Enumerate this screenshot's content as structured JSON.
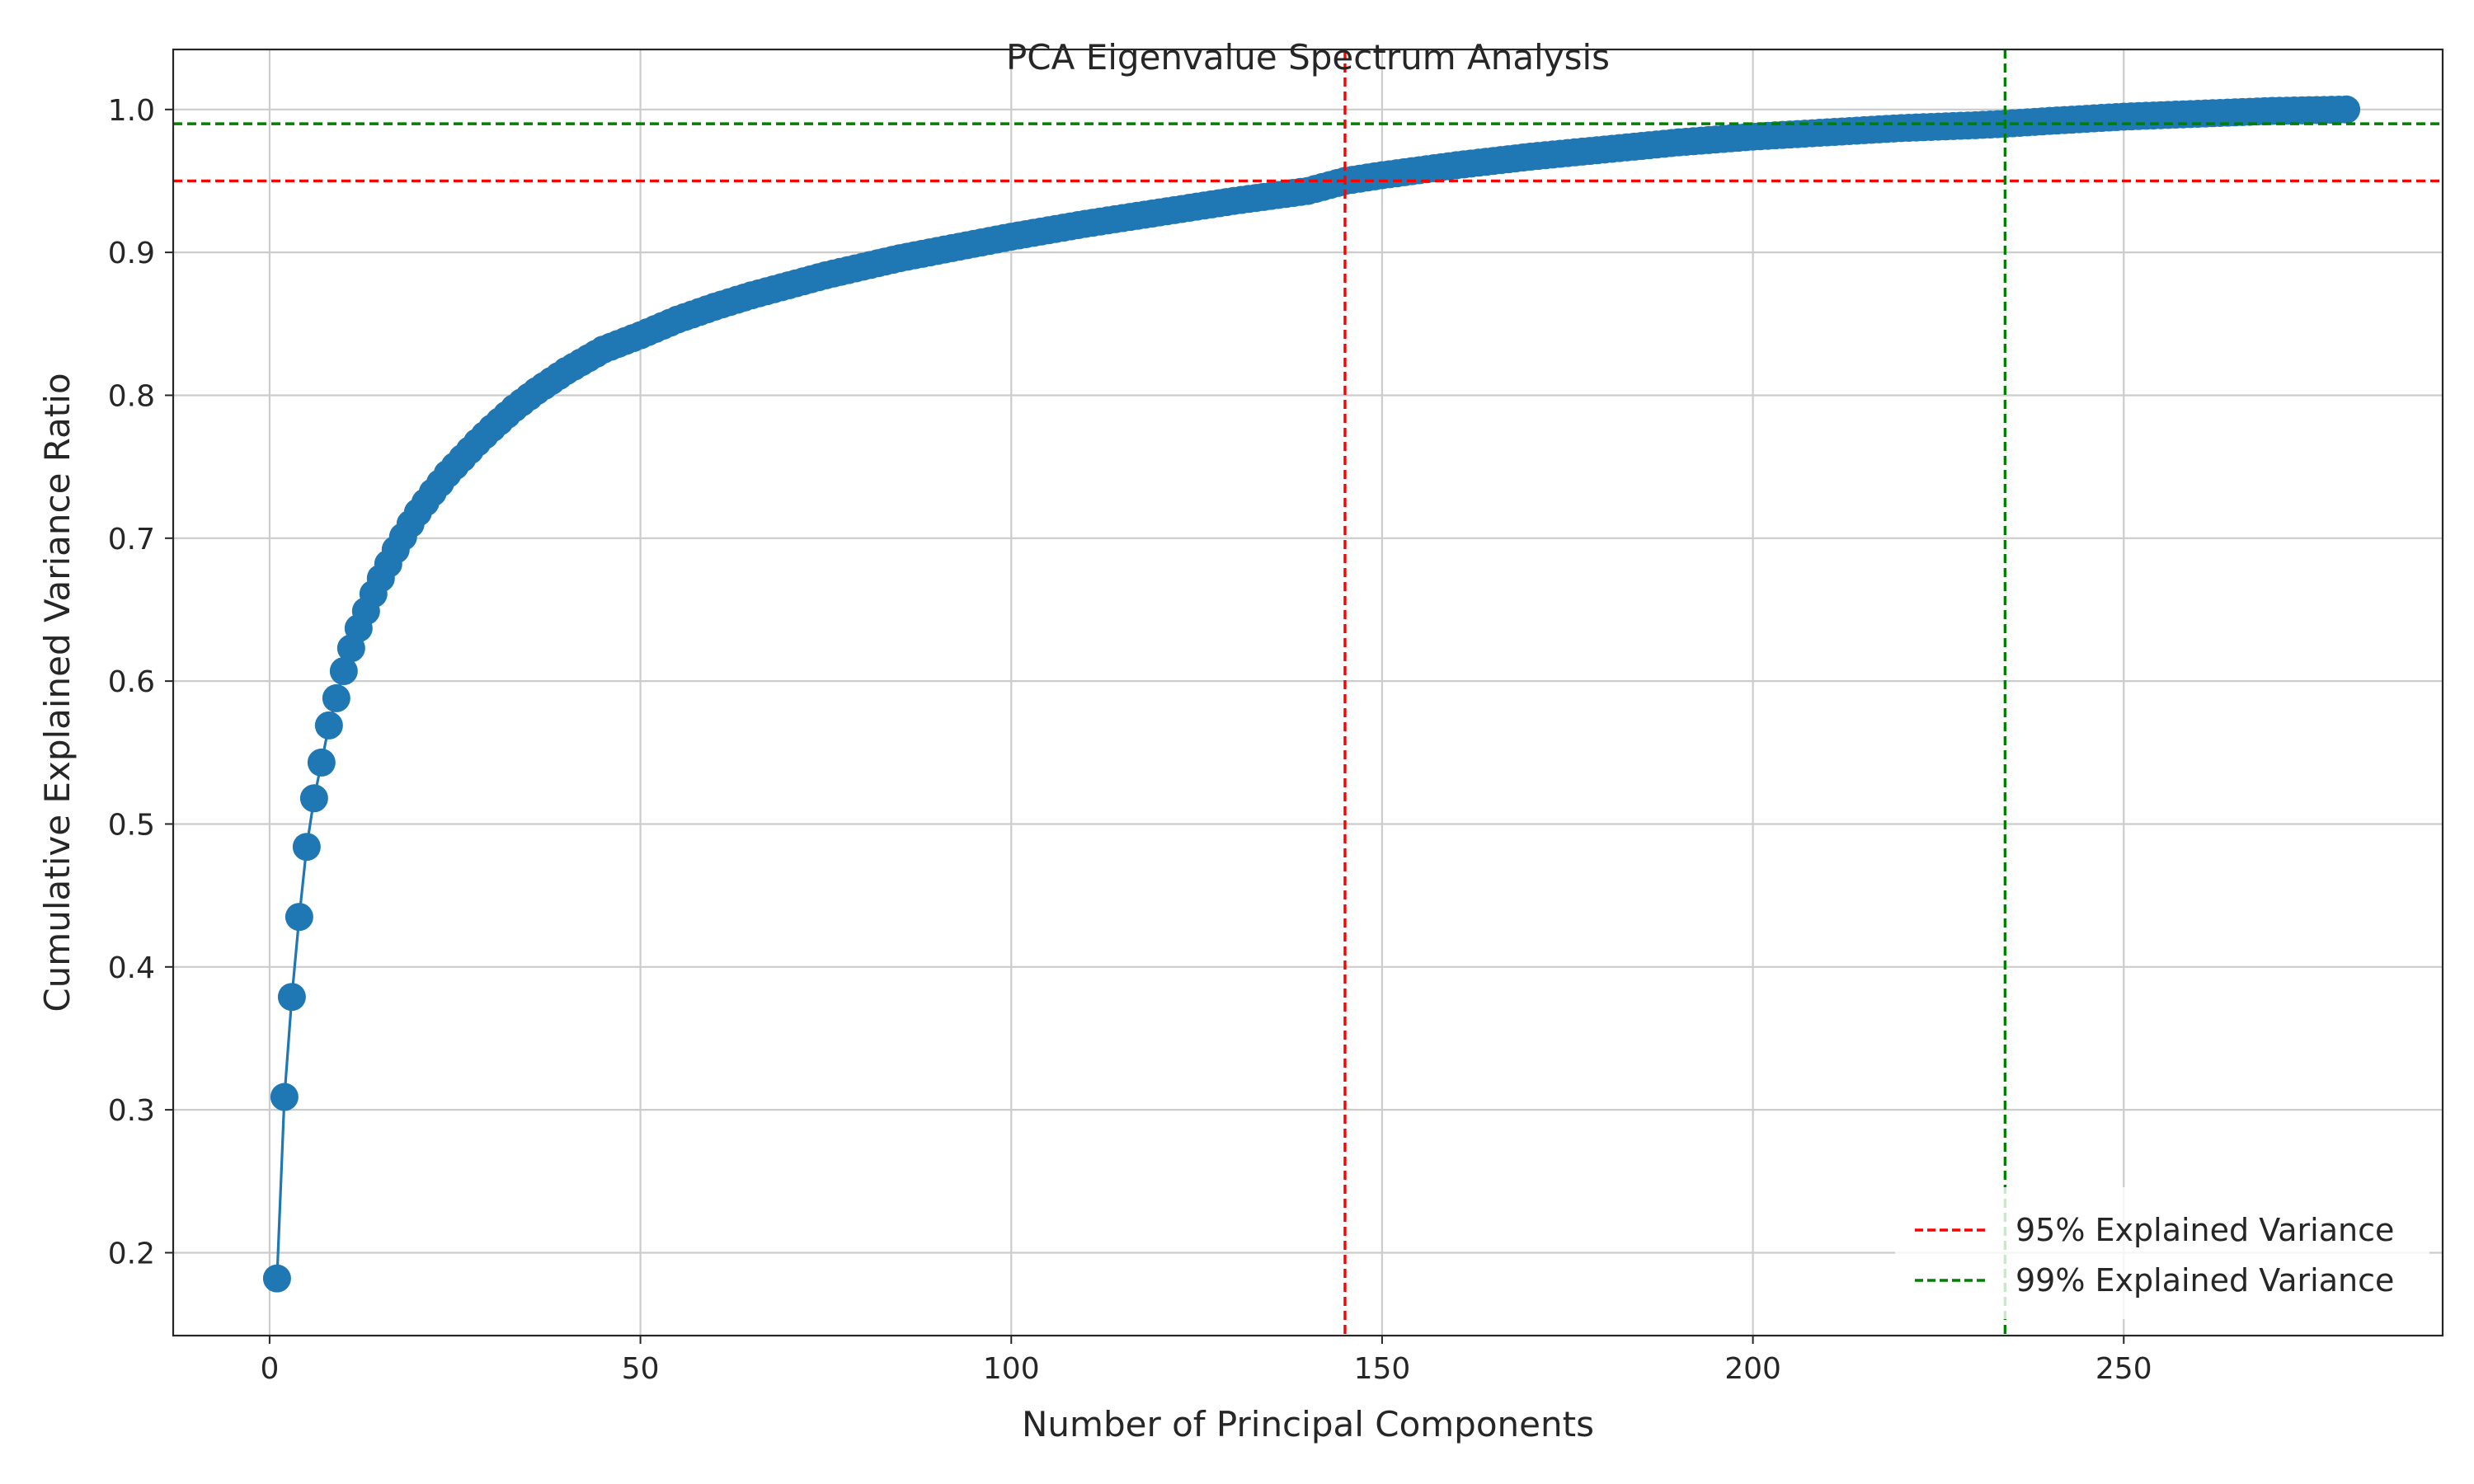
{
  "chart_data": {
    "type": "line",
    "title": "PCA Eigenvalue Spectrum Analysis",
    "xlabel": "Number of Principal Components",
    "ylabel": "Cumulative Explained Variance Ratio",
    "xlim": [
      -13,
      293
    ],
    "ylim": [
      0.142,
      1.042
    ],
    "xticks": [
      0,
      50,
      100,
      150,
      200,
      250
    ],
    "yticks": [
      0.2,
      0.3,
      0.4,
      0.5,
      0.6,
      0.7,
      0.8,
      0.9,
      1.0
    ],
    "grid": true,
    "legend_position": "lower-right",
    "series": [
      {
        "color": "#1f77b4",
        "marker": "circle",
        "x": [
          1,
          2,
          3,
          4,
          5,
          6,
          7,
          8,
          9,
          10,
          11,
          12,
          13,
          14,
          15,
          16,
          17,
          18,
          19,
          20,
          22,
          24,
          26,
          28,
          30,
          33,
          36,
          40,
          45,
          50,
          55,
          60,
          65,
          70,
          75,
          80,
          85,
          90,
          95,
          100,
          110,
          120,
          130,
          140,
          145,
          150,
          160,
          170,
          180,
          190,
          200,
          210,
          220,
          230,
          234,
          240,
          250,
          260,
          270,
          280
        ],
        "y": [
          0.182,
          0.309,
          0.379,
          0.435,
          0.484,
          0.518,
          0.543,
          0.569,
          0.588,
          0.607,
          0.623,
          0.637,
          0.649,
          0.661,
          0.672,
          0.682,
          0.692,
          0.701,
          0.71,
          0.718,
          0.732,
          0.745,
          0.756,
          0.767,
          0.777,
          0.791,
          0.803,
          0.817,
          0.832,
          0.842,
          0.853,
          0.862,
          0.87,
          0.877,
          0.884,
          0.89,
          0.896,
          0.901,
          0.906,
          0.911,
          0.92,
          0.928,
          0.936,
          0.943,
          0.95,
          0.954,
          0.961,
          0.967,
          0.972,
          0.977,
          0.981,
          0.984,
          0.987,
          0.989,
          0.99,
          0.992,
          0.995,
          0.997,
          0.999,
          1.0
        ]
      }
    ],
    "reference_lines": [
      {
        "orientation": "horizontal",
        "value": 0.95,
        "color": "#ff0000",
        "style": "dashed",
        "label": "95% Explained Variance"
      },
      {
        "orientation": "horizontal",
        "value": 0.99,
        "color": "#008000",
        "style": "dashed",
        "label": "99% Explained Variance"
      },
      {
        "orientation": "vertical",
        "value": 145,
        "color": "#ff0000",
        "style": "dashed"
      },
      {
        "orientation": "vertical",
        "value": 234,
        "color": "#008000",
        "style": "dashed"
      }
    ],
    "legend": [
      {
        "label": "95% Explained Variance",
        "color": "#ff0000"
      },
      {
        "label": "99% Explained Variance",
        "color": "#008000"
      }
    ]
  }
}
